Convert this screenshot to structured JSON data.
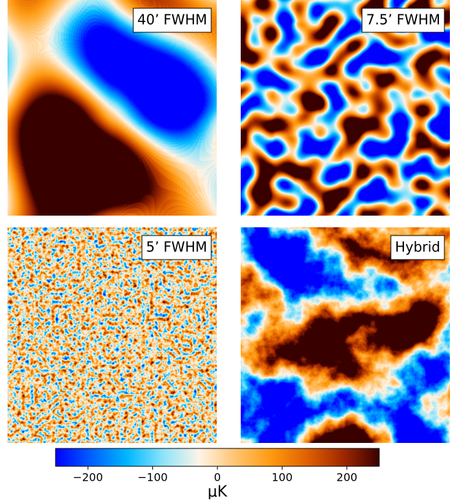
{
  "chart_data": {
    "type": "heatmap",
    "panels": [
      {
        "label": "40’ FWHM"
      },
      {
        "label": "7.5’ FWHM"
      },
      {
        "label": "5’ FWHM"
      },
      {
        "label": "Hybrid"
      }
    ],
    "colormap": [
      "#0000ff",
      "#0060ff",
      "#00b8ff",
      "#8ee4fa",
      "#fff4e6",
      "#ffc470",
      "#ff9a10",
      "#e06000",
      "#a02800",
      "#3a0000"
    ],
    "xlim": [
      -250,
      250
    ],
    "xticks": [
      {
        "value": -200,
        "label": "−200"
      },
      {
        "value": -100,
        "label": "−100"
      },
      0,
      100,
      200
    ],
    "xlabel": "μK"
  }
}
